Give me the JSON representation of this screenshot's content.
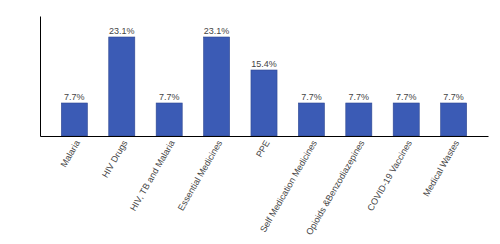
{
  "chart_data": {
    "type": "bar",
    "categories": [
      "Malaria",
      "HIV Drugs",
      "HIV, TB and Malaria",
      "Essential Medicines",
      "PPE",
      "Self Medication Medicines",
      "Opioids &Benzodiazepines",
      "COVID-19 Vaccines",
      "Medical Wastes"
    ],
    "values": [
      7.7,
      23.1,
      7.7,
      23.1,
      15.4,
      7.7,
      7.7,
      7.7,
      7.7
    ],
    "value_labels": [
      "7.7%",
      "23.1%",
      "7.7%",
      "23.1%",
      "15.4%",
      "7.7%",
      "7.7%",
      "7.7%",
      "7.7%"
    ],
    "color": "#3B5BB5",
    "ylim": [
      0,
      28
    ],
    "yticks": [],
    "data_labels": true,
    "tick_labels": "x",
    "grid": false
  }
}
